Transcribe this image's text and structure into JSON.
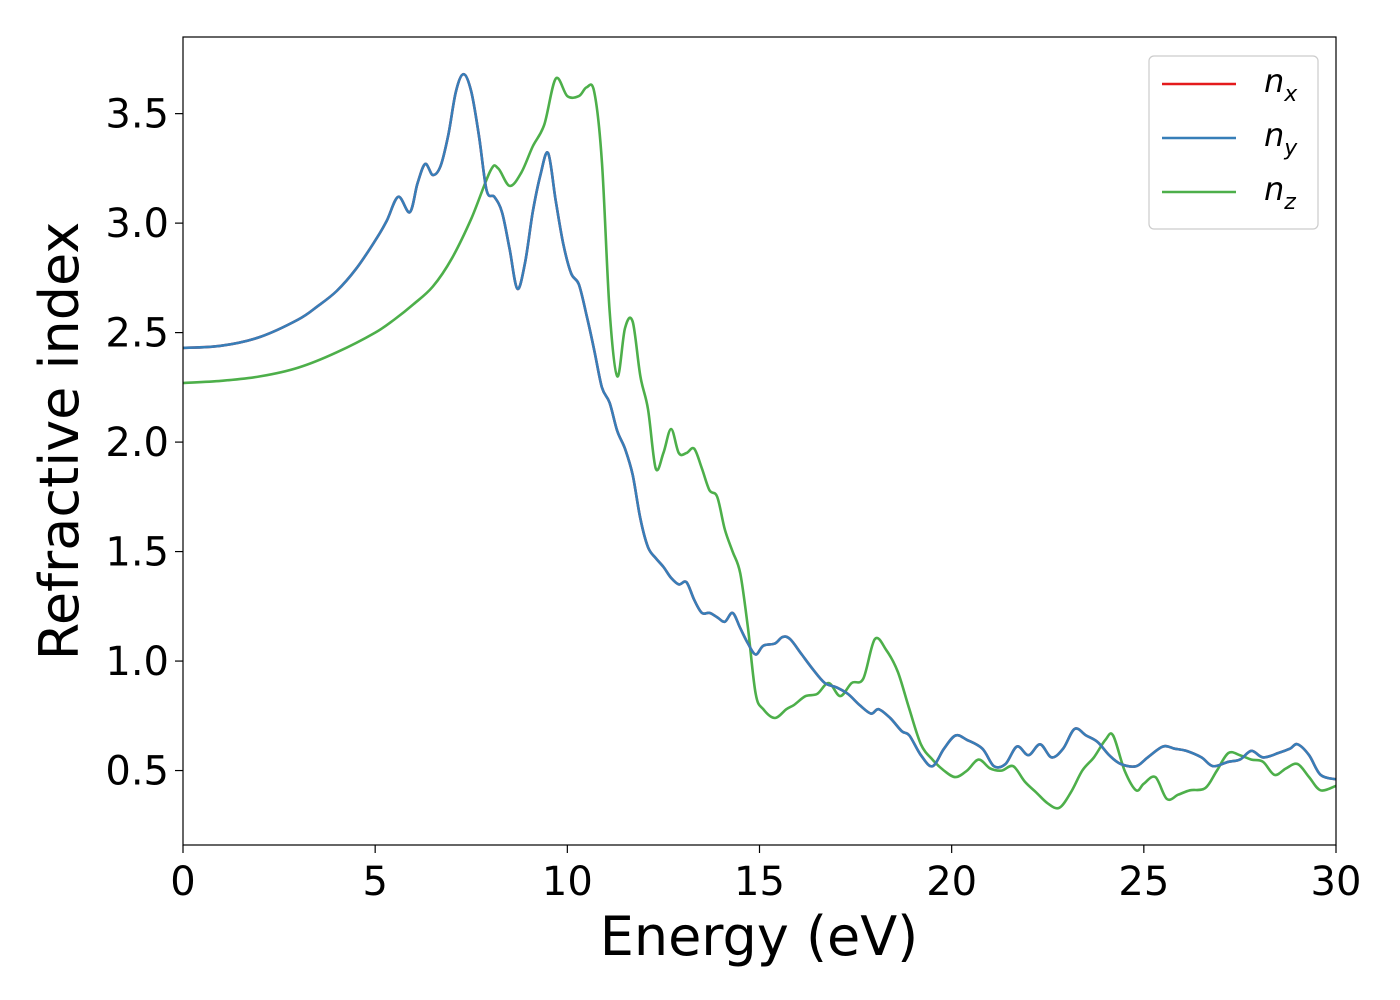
{
  "chart_data": {
    "type": "line",
    "title": "",
    "xlabel": "Energy (eV)",
    "ylabel": "Refractive index",
    "xlim": [
      0,
      30
    ],
    "ylim": [
      0.16,
      3.85
    ],
    "xticks": [
      0,
      5,
      10,
      15,
      20,
      25,
      30
    ],
    "yticks": [
      0.5,
      1.0,
      1.5,
      2.0,
      2.5,
      3.0,
      3.5
    ],
    "xtick_labels": [
      "0",
      "5",
      "10",
      "15",
      "20",
      "25",
      "30"
    ],
    "ytick_labels": [
      "0.5",
      "1.0",
      "1.5",
      "2.0",
      "2.5",
      "3.0",
      "3.5"
    ],
    "grid": false,
    "legend_position": "top-right",
    "series": [
      {
        "name": "n_x",
        "legend_base": "n",
        "legend_sub": "x",
        "color": "#e41a1c",
        "x": [
          0,
          1,
          2,
          3,
          3.5,
          4,
          4.5,
          5,
          5.3,
          5.6,
          5.9,
          6.1,
          6.3,
          6.5,
          6.7,
          6.9,
          7.1,
          7.3,
          7.5,
          7.7,
          7.9,
          8.1,
          8.3,
          8.5,
          8.7,
          8.9,
          9.1,
          9.3,
          9.5,
          9.7,
          9.9,
          10.1,
          10.3,
          10.5,
          10.7,
          10.9,
          11.1,
          11.3,
          11.5,
          11.7,
          11.9,
          12.1,
          12.3,
          12.5,
          12.7,
          12.9,
          13.1,
          13.3,
          13.5,
          13.7,
          13.9,
          14.1,
          14.3,
          14.5,
          14.7,
          14.9,
          15.1,
          15.4,
          15.6,
          15.8,
          16.1,
          16.4,
          16.7,
          17.0,
          17.3,
          17.6,
          17.9,
          18.1,
          18.4,
          18.7,
          18.9,
          19.2,
          19.5,
          19.8,
          20.1,
          20.4,
          20.8,
          21.1,
          21.4,
          21.7,
          22.0,
          22.3,
          22.6,
          22.9,
          23.2,
          23.5,
          23.8,
          24.1,
          24.4,
          24.8,
          25.1,
          25.5,
          25.8,
          26.1,
          26.5,
          26.8,
          27.2,
          27.5,
          27.8,
          28.1,
          28.5,
          28.8,
          29.0,
          29.3,
          29.6,
          30
        ],
        "values": [
          2.43,
          2.44,
          2.48,
          2.56,
          2.62,
          2.69,
          2.79,
          2.92,
          3.01,
          3.12,
          3.05,
          3.18,
          3.27,
          3.22,
          3.26,
          3.4,
          3.6,
          3.68,
          3.6,
          3.4,
          3.15,
          3.12,
          3.05,
          2.88,
          2.7,
          2.82,
          3.05,
          3.22,
          3.32,
          3.1,
          2.9,
          2.77,
          2.72,
          2.58,
          2.42,
          2.25,
          2.18,
          2.05,
          1.97,
          1.85,
          1.65,
          1.52,
          1.47,
          1.43,
          1.38,
          1.35,
          1.36,
          1.28,
          1.22,
          1.22,
          1.2,
          1.18,
          1.22,
          1.15,
          1.08,
          1.03,
          1.07,
          1.08,
          1.11,
          1.1,
          1.03,
          0.96,
          0.9,
          0.88,
          0.85,
          0.8,
          0.76,
          0.78,
          0.74,
          0.68,
          0.66,
          0.57,
          0.52,
          0.6,
          0.66,
          0.64,
          0.6,
          0.52,
          0.53,
          0.61,
          0.57,
          0.62,
          0.56,
          0.6,
          0.69,
          0.66,
          0.63,
          0.57,
          0.53,
          0.52,
          0.56,
          0.61,
          0.6,
          0.59,
          0.56,
          0.52,
          0.54,
          0.55,
          0.59,
          0.56,
          0.58,
          0.6,
          0.62,
          0.57,
          0.48,
          0.46
        ]
      },
      {
        "name": "n_y",
        "legend_base": "n",
        "legend_sub": "y",
        "color": "#377eb8",
        "x": [
          0,
          1,
          2,
          3,
          3.5,
          4,
          4.5,
          5,
          5.3,
          5.6,
          5.9,
          6.1,
          6.3,
          6.5,
          6.7,
          6.9,
          7.1,
          7.3,
          7.5,
          7.7,
          7.9,
          8.1,
          8.3,
          8.5,
          8.7,
          8.9,
          9.1,
          9.3,
          9.5,
          9.7,
          9.9,
          10.1,
          10.3,
          10.5,
          10.7,
          10.9,
          11.1,
          11.3,
          11.5,
          11.7,
          11.9,
          12.1,
          12.3,
          12.5,
          12.7,
          12.9,
          13.1,
          13.3,
          13.5,
          13.7,
          13.9,
          14.1,
          14.3,
          14.5,
          14.7,
          14.9,
          15.1,
          15.4,
          15.6,
          15.8,
          16.1,
          16.4,
          16.7,
          17.0,
          17.3,
          17.6,
          17.9,
          18.1,
          18.4,
          18.7,
          18.9,
          19.2,
          19.5,
          19.8,
          20.1,
          20.4,
          20.8,
          21.1,
          21.4,
          21.7,
          22.0,
          22.3,
          22.6,
          22.9,
          23.2,
          23.5,
          23.8,
          24.1,
          24.4,
          24.8,
          25.1,
          25.5,
          25.8,
          26.1,
          26.5,
          26.8,
          27.2,
          27.5,
          27.8,
          28.1,
          28.5,
          28.8,
          29.0,
          29.3,
          29.6,
          30
        ],
        "values": [
          2.43,
          2.44,
          2.48,
          2.56,
          2.62,
          2.69,
          2.79,
          2.92,
          3.01,
          3.12,
          3.05,
          3.18,
          3.27,
          3.22,
          3.26,
          3.4,
          3.6,
          3.68,
          3.6,
          3.4,
          3.15,
          3.12,
          3.05,
          2.88,
          2.7,
          2.82,
          3.05,
          3.22,
          3.32,
          3.1,
          2.9,
          2.77,
          2.72,
          2.58,
          2.42,
          2.25,
          2.18,
          2.05,
          1.97,
          1.85,
          1.65,
          1.52,
          1.47,
          1.43,
          1.38,
          1.35,
          1.36,
          1.28,
          1.22,
          1.22,
          1.2,
          1.18,
          1.22,
          1.15,
          1.08,
          1.03,
          1.07,
          1.08,
          1.11,
          1.1,
          1.03,
          0.96,
          0.9,
          0.88,
          0.85,
          0.8,
          0.76,
          0.78,
          0.74,
          0.68,
          0.66,
          0.57,
          0.52,
          0.6,
          0.66,
          0.64,
          0.6,
          0.52,
          0.53,
          0.61,
          0.57,
          0.62,
          0.56,
          0.6,
          0.69,
          0.66,
          0.63,
          0.57,
          0.53,
          0.52,
          0.56,
          0.61,
          0.6,
          0.59,
          0.56,
          0.52,
          0.54,
          0.55,
          0.59,
          0.56,
          0.58,
          0.6,
          0.62,
          0.57,
          0.48,
          0.46
        ]
      },
      {
        "name": "n_z",
        "legend_base": "n",
        "legend_sub": "z",
        "color": "#4daf4a",
        "x": [
          0,
          1,
          2,
          3,
          4,
          5,
          5.5,
          6,
          6.5,
          7,
          7.5,
          8,
          8.2,
          8.5,
          8.8,
          9.1,
          9.4,
          9.7,
          10.0,
          10.3,
          10.5,
          10.7,
          10.9,
          11.1,
          11.3,
          11.5,
          11.7,
          11.9,
          12.1,
          12.3,
          12.5,
          12.7,
          12.9,
          13.1,
          13.3,
          13.5,
          13.7,
          13.9,
          14.1,
          14.3,
          14.5,
          14.7,
          14.9,
          15.1,
          15.4,
          15.7,
          15.9,
          16.2,
          16.5,
          16.8,
          17.1,
          17.4,
          17.7,
          18.0,
          18.3,
          18.6,
          18.9,
          19.2,
          19.5,
          19.8,
          20.1,
          20.4,
          20.7,
          21.0,
          21.3,
          21.6,
          21.9,
          22.2,
          22.5,
          22.8,
          23.1,
          23.4,
          23.7,
          24.0,
          24.2,
          24.5,
          24.8,
          25.0,
          25.3,
          25.6,
          25.9,
          26.2,
          26.6,
          26.9,
          27.2,
          27.5,
          27.8,
          28.1,
          28.4,
          28.7,
          29.0,
          29.3,
          29.6,
          30
        ],
        "values": [
          2.27,
          2.28,
          2.3,
          2.34,
          2.41,
          2.5,
          2.56,
          2.63,
          2.71,
          2.84,
          3.02,
          3.24,
          3.25,
          3.17,
          3.23,
          3.35,
          3.45,
          3.66,
          3.58,
          3.58,
          3.62,
          3.6,
          3.28,
          2.6,
          2.3,
          2.52,
          2.55,
          2.3,
          2.15,
          1.88,
          1.95,
          2.06,
          1.95,
          1.95,
          1.97,
          1.88,
          1.78,
          1.75,
          1.6,
          1.5,
          1.4,
          1.15,
          0.85,
          0.78,
          0.74,
          0.78,
          0.8,
          0.84,
          0.85,
          0.9,
          0.84,
          0.9,
          0.92,
          1.1,
          1.05,
          0.95,
          0.78,
          0.62,
          0.55,
          0.5,
          0.47,
          0.5,
          0.55,
          0.51,
          0.5,
          0.52,
          0.45,
          0.4,
          0.35,
          0.33,
          0.4,
          0.5,
          0.56,
          0.64,
          0.66,
          0.5,
          0.41,
          0.44,
          0.47,
          0.37,
          0.39,
          0.41,
          0.42,
          0.5,
          0.58,
          0.57,
          0.55,
          0.54,
          0.48,
          0.51,
          0.53,
          0.47,
          0.41,
          0.43
        ]
      }
    ]
  }
}
